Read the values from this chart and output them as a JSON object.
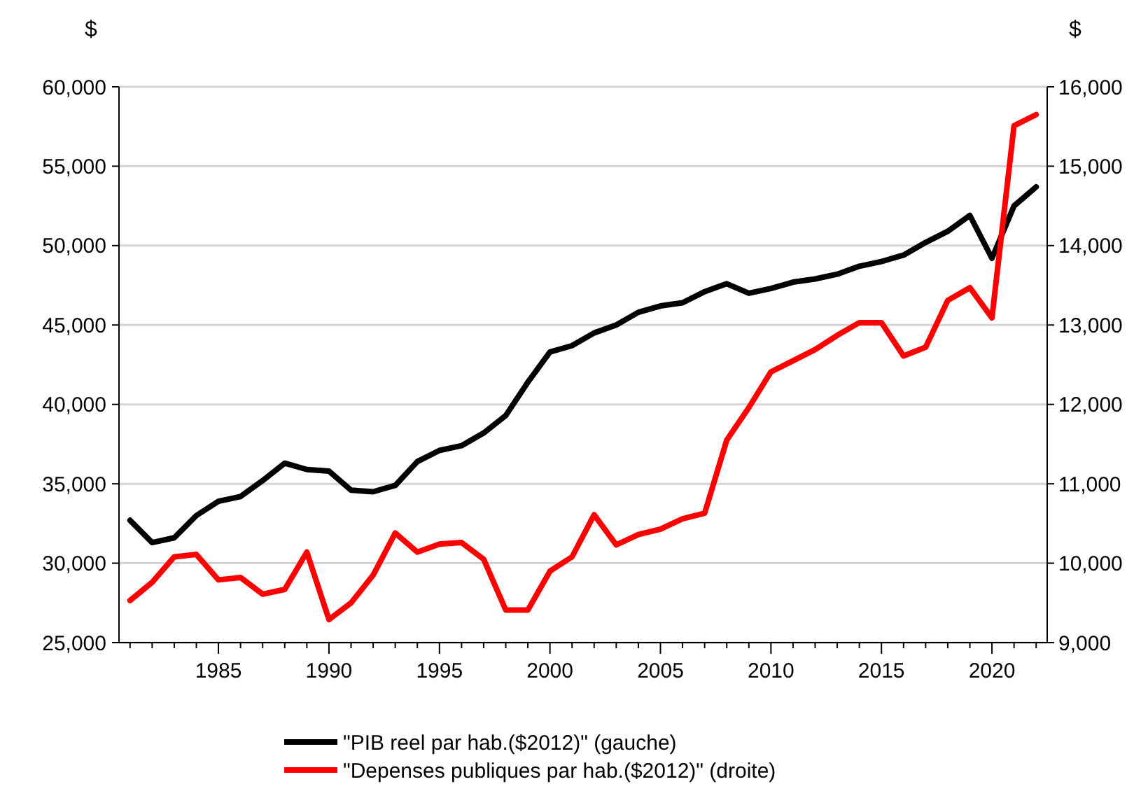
{
  "chart_data": {
    "type": "line",
    "ylabel": "$",
    "y2label": "$",
    "x": [
      1981,
      1982,
      1983,
      1984,
      1985,
      1986,
      1987,
      1988,
      1989,
      1990,
      1991,
      1992,
      1993,
      1994,
      1995,
      1996,
      1997,
      1998,
      1999,
      2000,
      2001,
      2002,
      2003,
      2004,
      2005,
      2006,
      2007,
      2008,
      2009,
      2010,
      2011,
      2012,
      2013,
      2014,
      2015,
      2016,
      2017,
      2018,
      2019,
      2020,
      2021,
      2022
    ],
    "xlim": [
      1980.5,
      2022.5
    ],
    "xticks": [
      {
        "value": 1981,
        "label": null
      },
      {
        "value": 1982,
        "label": null
      },
      {
        "value": 1983,
        "label": null
      },
      {
        "value": 1984,
        "label": null
      },
      1985,
      {
        "value": 1986,
        "label": null
      },
      {
        "value": 1987,
        "label": null
      },
      {
        "value": 1988,
        "label": null
      },
      {
        "value": 1989,
        "label": null
      },
      1990,
      {
        "value": 1991,
        "label": null
      },
      {
        "value": 1992,
        "label": null
      },
      {
        "value": 1993,
        "label": null
      },
      {
        "value": 1994,
        "label": null
      },
      1995,
      {
        "value": 1996,
        "label": null
      },
      {
        "value": 1997,
        "label": null
      },
      {
        "value": 1998,
        "label": null
      },
      {
        "value": 1999,
        "label": null
      },
      2000,
      {
        "value": 2001,
        "label": null
      },
      {
        "value": 2002,
        "label": null
      },
      {
        "value": 2003,
        "label": null
      },
      {
        "value": 2004,
        "label": null
      },
      2005,
      {
        "value": 2006,
        "label": null
      },
      {
        "value": 2007,
        "label": null
      },
      {
        "value": 2008,
        "label": null
      },
      {
        "value": 2009,
        "label": null
      },
      2010,
      {
        "value": 2011,
        "label": null
      },
      {
        "value": 2012,
        "label": null
      },
      {
        "value": 2013,
        "label": null
      },
      {
        "value": 2014,
        "label": null
      },
      2015,
      {
        "value": 2016,
        "label": null
      },
      {
        "value": 2017,
        "label": null
      },
      {
        "value": 2018,
        "label": null
      },
      {
        "value": 2019,
        "label": null
      },
      2020,
      {
        "value": 2021,
        "label": null
      },
      {
        "value": 2022,
        "label": null
      }
    ],
    "ylim": [
      25000,
      60000
    ],
    "yticks": [
      {
        "value": 25000,
        "label": "25,000"
      },
      {
        "value": 30000,
        "label": "30,000"
      },
      {
        "value": 35000,
        "label": "35,000"
      },
      {
        "value": 40000,
        "label": "40,000"
      },
      {
        "value": 45000,
        "label": "45,000"
      },
      {
        "value": 50000,
        "label": "50,000"
      },
      {
        "value": 55000,
        "label": "55,000"
      },
      {
        "value": 60000,
        "label": "60,000"
      }
    ],
    "y2lim": [
      9000,
      16000
    ],
    "y2ticks": [
      {
        "value": 9000,
        "label": "9,000"
      },
      {
        "value": 10000,
        "label": "10,000"
      },
      {
        "value": 11000,
        "label": "11,000"
      },
      {
        "value": 12000,
        "label": "12,000"
      },
      {
        "value": 13000,
        "label": "13,000"
      },
      {
        "value": 14000,
        "label": "14,000"
      },
      {
        "value": 15000,
        "label": "15,000"
      },
      {
        "value": 16000,
        "label": "16,000"
      }
    ],
    "grid": "y",
    "legend": "bottom",
    "marker": "none",
    "line_style": "solid",
    "series": [
      {
        "name": "\"PIB reel par hab.($2012)\"  (gauche)",
        "color": "#000000",
        "values": [
          32700,
          31300,
          31600,
          33000,
          33900,
          34200,
          35200,
          36300,
          35900,
          35800,
          34600,
          34500,
          34900,
          36400,
          37100,
          37400,
          38200,
          39300,
          41400,
          43300,
          43700,
          44500,
          45000,
          45800,
          46200,
          46400,
          47100,
          47600,
          47000,
          47300,
          47700,
          47900,
          48200,
          48700,
          49000,
          49400,
          50200,
          50900,
          51900,
          49200,
          52500,
          53700
        ]
      },
      {
        "name": "\"Depenses publiques par hab.($2012)\" (droite)",
        "color": "#ff0000",
        "axis": "y2",
        "values": [
          9530,
          9760,
          10080,
          10110,
          9790,
          9820,
          9610,
          9670,
          10140,
          9290,
          9500,
          9850,
          10380,
          10140,
          10240,
          10260,
          10050,
          9410,
          9410,
          9900,
          10080,
          10610,
          10230,
          10360,
          10430,
          10560,
          10630,
          11550,
          11960,
          12410,
          12550,
          12690,
          12870,
          13030,
          13030,
          12610,
          12720,
          13310,
          13470,
          13090,
          15510,
          15650
        ]
      }
    ]
  }
}
